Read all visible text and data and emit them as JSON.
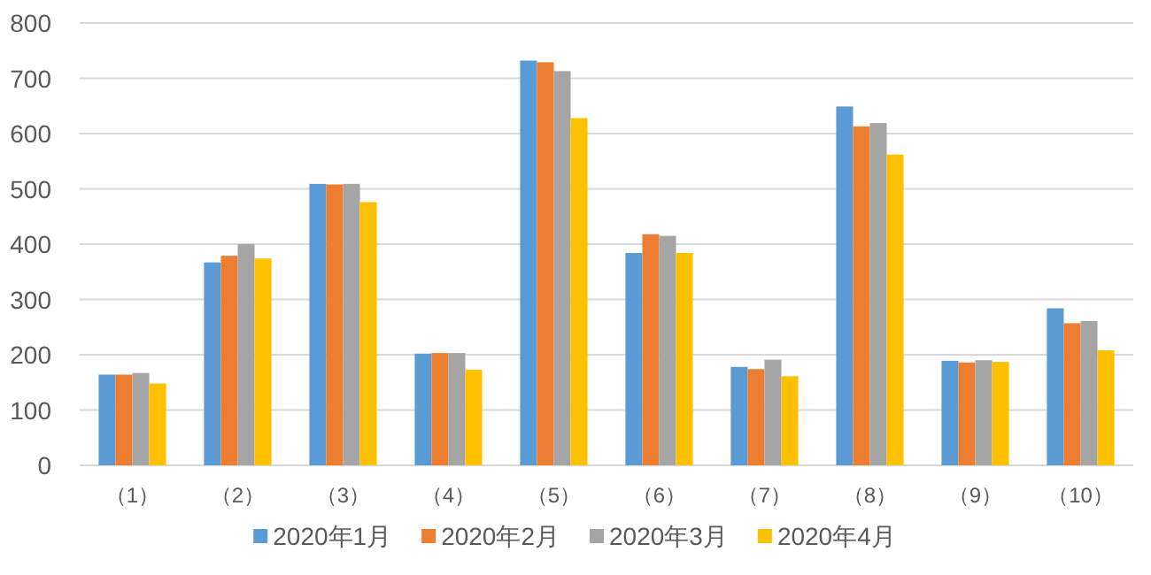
{
  "chart_data": {
    "type": "bar",
    "categories": [
      "（1）",
      "（2）",
      "（3）",
      "（4）",
      "（5）",
      "（6）",
      "（7）",
      "（8）",
      "（9）",
      "（10）"
    ],
    "series": [
      {
        "name": "2020年1月",
        "color": "#5b9bd5",
        "values": [
          164,
          367,
          509,
          202,
          732,
          384,
          178,
          649,
          189,
          284
        ]
      },
      {
        "name": "2020年2月",
        "color": "#ed7d31",
        "values": [
          164,
          379,
          508,
          203,
          729,
          418,
          174,
          613,
          186,
          257
        ]
      },
      {
        "name": "2020年3月",
        "color": "#a5a5a5",
        "values": [
          167,
          400,
          509,
          203,
          713,
          415,
          191,
          619,
          190,
          261
        ]
      },
      {
        "name": "2020年4月",
        "color": "#ffc000",
        "values": [
          148,
          374,
          476,
          173,
          628,
          384,
          161,
          562,
          187,
          208
        ]
      }
    ],
    "ylim": [
      0,
      800
    ],
    "yticks": [
      0,
      100,
      200,
      300,
      400,
      500,
      600,
      700,
      800
    ],
    "grid": "y",
    "legend": "bottom"
  }
}
